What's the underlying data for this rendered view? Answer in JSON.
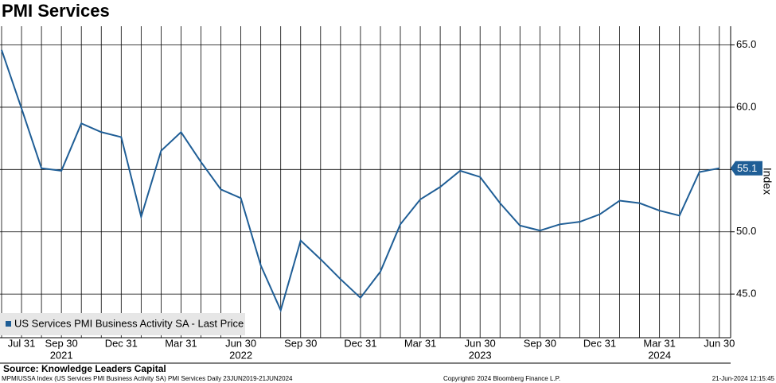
{
  "chart_data": {
    "type": "line",
    "title": "PMI Services",
    "y_axis_label": "Index",
    "categories": [
      null,
      "Jul 31",
      null,
      "Sep 30",
      null,
      null,
      "Dec 31",
      null,
      null,
      "Mar 31",
      null,
      null,
      "Jun 30",
      null,
      null,
      "Sep 30",
      null,
      null,
      "Dec 31",
      null,
      null,
      "Mar 31",
      null,
      null,
      "Jun 30",
      null,
      null,
      "Sep 30",
      null,
      null,
      "Dec 31",
      null,
      null,
      "Mar 31",
      null,
      null,
      "Jun 30"
    ],
    "year_labels": [
      null,
      null,
      null,
      "2021",
      null,
      null,
      null,
      null,
      null,
      null,
      null,
      null,
      "2022",
      null,
      null,
      null,
      null,
      null,
      null,
      null,
      null,
      null,
      null,
      null,
      "2023",
      null,
      null,
      null,
      null,
      null,
      null,
      null,
      null,
      "2024",
      null,
      null,
      null
    ],
    "series": [
      {
        "name": "US Services PMI Business Activity SA - Last Price",
        "color": "#1f5e96",
        "values": [
          64.6,
          59.9,
          55.1,
          54.9,
          58.7,
          58.0,
          57.6,
          51.2,
          56.5,
          58.0,
          55.6,
          53.4,
          52.7,
          47.3,
          43.7,
          49.3,
          47.8,
          46.2,
          44.7,
          46.8,
          50.6,
          52.6,
          53.6,
          54.9,
          54.4,
          52.3,
          50.5,
          50.1,
          50.6,
          50.8,
          51.4,
          52.5,
          52.3,
          51.7,
          51.3,
          54.8,
          55.1
        ]
      }
    ],
    "ylim": [
      41.5,
      66.5
    ],
    "yticks": [
      {
        "value": 45,
        "label": "45.0"
      },
      {
        "value": 50,
        "label": "50.0"
      },
      {
        "value": 55,
        "label": "55.0"
      },
      {
        "value": 60,
        "label": "60.0"
      },
      {
        "value": 65,
        "label": "65.0"
      }
    ],
    "grid": true,
    "source": "Source: Knowledge Leaders Capital",
    "footer_left": "MPMIUSSA Index (US Services PMI Business Activity SA) PMI Services  Daily 23JUN2019-21JUN2024",
    "footer_center": "Copyright© 2024 Bloomberg Finance L.P.",
    "footer_right": "21-Jun-2024 12:15:45"
  }
}
